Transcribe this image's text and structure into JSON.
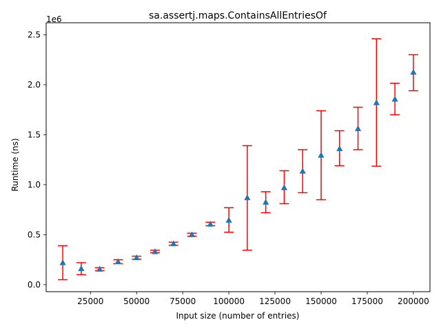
{
  "chart_data": {
    "type": "scatter",
    "title": "sa.assertj.maps.ContainsAllEntriesOf",
    "xlabel": "Input size (number of entries)",
    "ylabel": "Runtime (ns)",
    "y_offset_label": "1e6",
    "xlim": [
      1000,
      209000
    ],
    "ylim": [
      -0.07,
      2.62
    ],
    "x_ticks": [
      25000,
      50000,
      75000,
      100000,
      125000,
      150000,
      175000,
      200000
    ],
    "x_tick_labels": [
      "25000",
      "50000",
      "75000",
      "100000",
      "125000",
      "150000",
      "175000",
      "200000"
    ],
    "y_ticks": [
      0.0,
      0.5,
      1.0,
      1.5,
      2.0,
      2.5
    ],
    "y_tick_labels": [
      "0.0",
      "0.5",
      "1.0",
      "1.5",
      "2.0",
      "2.5"
    ],
    "y_unit_multiplier": 1000000,
    "grid": false,
    "marker": "triangle",
    "marker_color": "#1f77b4",
    "errorbar_color": "#ff0000",
    "points": [
      {
        "x": 10000,
        "y": 0.22,
        "lo": 0.05,
        "hi": 0.39
      },
      {
        "x": 20000,
        "y": 0.16,
        "lo": 0.1,
        "hi": 0.22
      },
      {
        "x": 30000,
        "y": 0.155,
        "lo": 0.14,
        "hi": 0.17
      },
      {
        "x": 40000,
        "y": 0.23,
        "lo": 0.21,
        "hi": 0.25
      },
      {
        "x": 50000,
        "y": 0.27,
        "lo": 0.255,
        "hi": 0.285
      },
      {
        "x": 60000,
        "y": 0.33,
        "lo": 0.32,
        "hi": 0.345
      },
      {
        "x": 70000,
        "y": 0.41,
        "lo": 0.395,
        "hi": 0.425
      },
      {
        "x": 80000,
        "y": 0.5,
        "lo": 0.485,
        "hi": 0.515
      },
      {
        "x": 90000,
        "y": 0.605,
        "lo": 0.59,
        "hi": 0.625
      },
      {
        "x": 100000,
        "y": 0.645,
        "lo": 0.525,
        "hi": 0.77
      },
      {
        "x": 110000,
        "y": 0.87,
        "lo": 0.345,
        "hi": 1.39
      },
      {
        "x": 120000,
        "y": 0.825,
        "lo": 0.72,
        "hi": 0.93
      },
      {
        "x": 130000,
        "y": 0.97,
        "lo": 0.81,
        "hi": 1.14
      },
      {
        "x": 140000,
        "y": 1.135,
        "lo": 0.92,
        "hi": 1.35
      },
      {
        "x": 150000,
        "y": 1.295,
        "lo": 0.85,
        "hi": 1.74
      },
      {
        "x": 160000,
        "y": 1.36,
        "lo": 1.19,
        "hi": 1.54
      },
      {
        "x": 170000,
        "y": 1.56,
        "lo": 1.35,
        "hi": 1.775
      },
      {
        "x": 180000,
        "y": 1.82,
        "lo": 1.185,
        "hi": 2.46
      },
      {
        "x": 190000,
        "y": 1.855,
        "lo": 1.7,
        "hi": 2.015
      },
      {
        "x": 200000,
        "y": 2.125,
        "lo": 1.94,
        "hi": 2.3
      }
    ]
  }
}
